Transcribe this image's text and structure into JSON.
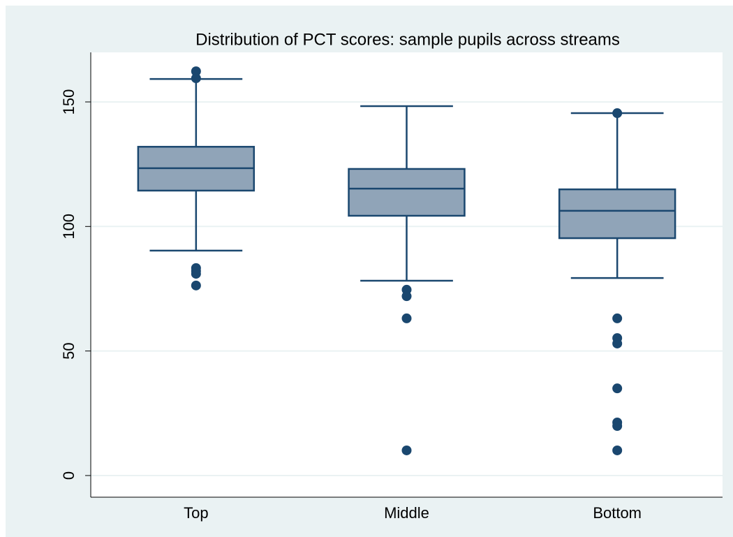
{
  "chart_data": {
    "type": "box",
    "title": "Distribution of PCT scores: sample pupils across streams",
    "categories": [
      "Top",
      "Middle",
      "Bottom"
    ],
    "boxes": [
      {
        "low": 90.3,
        "q1": 114.4,
        "median": 123.4,
        "q3": 132,
        "high": 159.2,
        "outliers": [
          162.3,
          159.5,
          83.3,
          82.1,
          81,
          76.3
        ]
      },
      {
        "low": 78.2,
        "q1": 104.3,
        "median": 115.2,
        "q3": 123.1,
        "high": 148.3,
        "outliers": [
          74.6,
          72,
          63.1,
          10.1
        ]
      },
      {
        "low": 79.3,
        "q1": 95.3,
        "median": 106.3,
        "q3": 114.9,
        "high": 145.5,
        "outliers": [
          145.5,
          63.1,
          55.2,
          53,
          35,
          21.3,
          19.9,
          10.1
        ]
      }
    ],
    "color": "#90a4b8",
    "line_color": "#1a476f",
    "ylim": [
      -8.7,
      169.9
    ],
    "yticks": [
      0,
      50,
      100,
      150
    ],
    "grid": true
  }
}
